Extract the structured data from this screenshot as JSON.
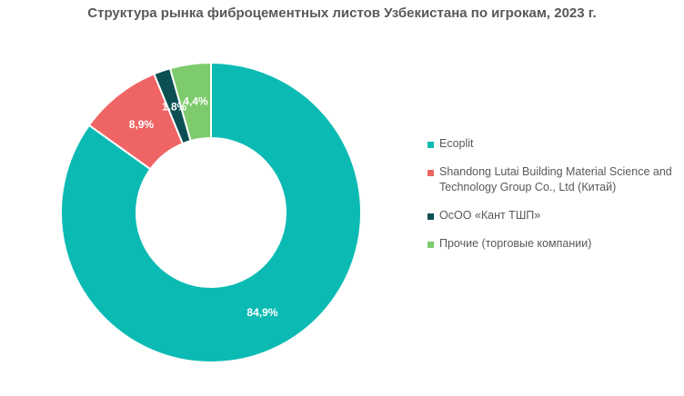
{
  "chart_data": {
    "type": "pie",
    "title": "Структура рынка фиброцементных листов Узбекистана по игрокам, 2023 г.",
    "categories": [
      "Ecoplit",
      "Shandong Lutai Building Material Science and Technology Group Co., Ltd (Китай)",
      "ОсОО «Кант ТШП»",
      "Прочие (торговые компании)"
    ],
    "values": [
      84.9,
      8.9,
      1.8,
      4.4
    ],
    "data_labels": [
      "84,9%",
      "8,9%",
      "1,8%",
      "4,4%"
    ],
    "colors": [
      "#0BBBB3",
      "#EF6464",
      "#0B4F53",
      "#7DCB6C"
    ],
    "donut": true,
    "legend": "right"
  }
}
